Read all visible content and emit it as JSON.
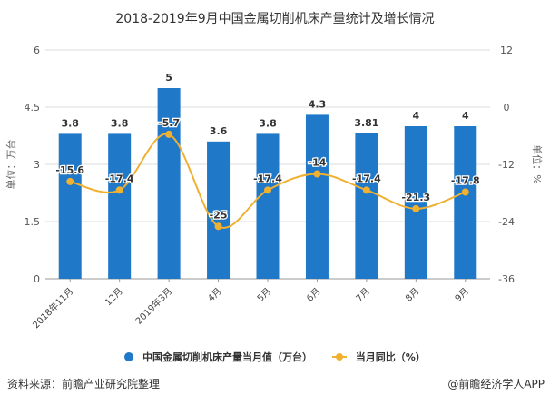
{
  "chart_data": {
    "type": "bar+line",
    "title": "2018-2019年9月中国金属切削机床产量统计及增长情况",
    "categories": [
      "2018年11月",
      "12月",
      "2019年3月",
      "4月",
      "5月",
      "6月",
      "7月",
      "8月",
      "9月"
    ],
    "series": [
      {
        "name": "中国金属切削机床产量当月值（万台）",
        "type": "bar",
        "axis": "left",
        "color": "#1f78c8",
        "values": [
          3.8,
          3.8,
          5,
          3.6,
          3.8,
          4.3,
          3.81,
          4,
          4
        ],
        "labels": [
          "3.8",
          "3.8",
          "5",
          "3.6",
          "3.8",
          "4.3",
          "3.81",
          "4",
          "4"
        ]
      },
      {
        "name": "当月同比（%）",
        "type": "line",
        "axis": "right",
        "color": "#f0b030",
        "values": [
          -15.6,
          -17.4,
          -5.7,
          -25,
          -17.4,
          -14,
          -17.4,
          -21.3,
          -17.8
        ],
        "labels": [
          "-15.6",
          "-17.4",
          "-5.7",
          "-25",
          "-17.4",
          "-14",
          "-17.4",
          "-21.3",
          "-17.8"
        ]
      }
    ],
    "left_axis": {
      "label": "单位：万台",
      "range": [
        0,
        6
      ],
      "ticks": [
        "0",
        "1.5",
        "3",
        "4.5",
        "6"
      ]
    },
    "right_axis": {
      "label": "单位：%",
      "range": [
        -36,
        12
      ],
      "ticks": [
        "-36",
        "-24",
        "-12",
        "0",
        "12"
      ]
    },
    "grid": true,
    "legend": "bottom"
  },
  "source": "资料来源：前瞻产业研究院整理",
  "credit": "@前瞻经济学人APP"
}
